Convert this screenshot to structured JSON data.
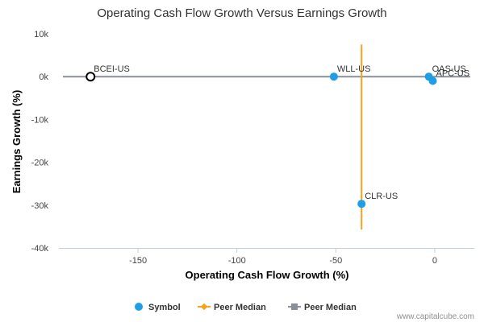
{
  "chart_data": {
    "type": "scatter",
    "title": "Operating Cash Flow Growth Versus Earnings Growth",
    "xlabel": "Operating Cash Flow Growth (%)",
    "ylabel": "Earnings Growth (%)",
    "xlim": [
      -190,
      20
    ],
    "ylim": [
      -40000,
      10000
    ],
    "x_ticks": [
      -150,
      -100,
      -50,
      0
    ],
    "x_tick_labels": [
      "-150",
      "-100",
      "-50",
      "0"
    ],
    "y_ticks": [
      10000,
      0,
      -10000,
      -20000,
      -30000,
      -40000
    ],
    "y_tick_labels": [
      "10k",
      "0k",
      "-10k",
      "-20k",
      "-30k",
      "-40k"
    ],
    "grid": false,
    "legend_position": "bottom",
    "points": [
      {
        "label": "BCEI-US",
        "x": -174,
        "y": 0,
        "highlighted": true
      },
      {
        "label": "WLL-US",
        "x": -51,
        "y": 0
      },
      {
        "label": "OAS-US",
        "x": -3,
        "y": 0
      },
      {
        "label": "APC-US",
        "x": -1,
        "y": -1000
      },
      {
        "label": "CLR-US",
        "x": -37,
        "y": -29700
      }
    ],
    "peer_median_x": -37,
    "peer_median_y": 0,
    "peer_median_x_range": [
      -35700,
      7500
    ],
    "legend": [
      {
        "name": "Symbol",
        "color": "#1d9ee6",
        "marker": "circle"
      },
      {
        "name": "Peer Median",
        "color": "#f7a21b",
        "marker": "diamond"
      },
      {
        "name": "Peer Median",
        "color": "#8b8f9b",
        "marker": "square"
      }
    ],
    "colors": {
      "symbol": "#1d9ee6",
      "median_x": "#f7a21b",
      "median_y": "#8b8f9b",
      "highlight_stroke": "#000000"
    }
  },
  "credit": "www.capitalcube.com"
}
